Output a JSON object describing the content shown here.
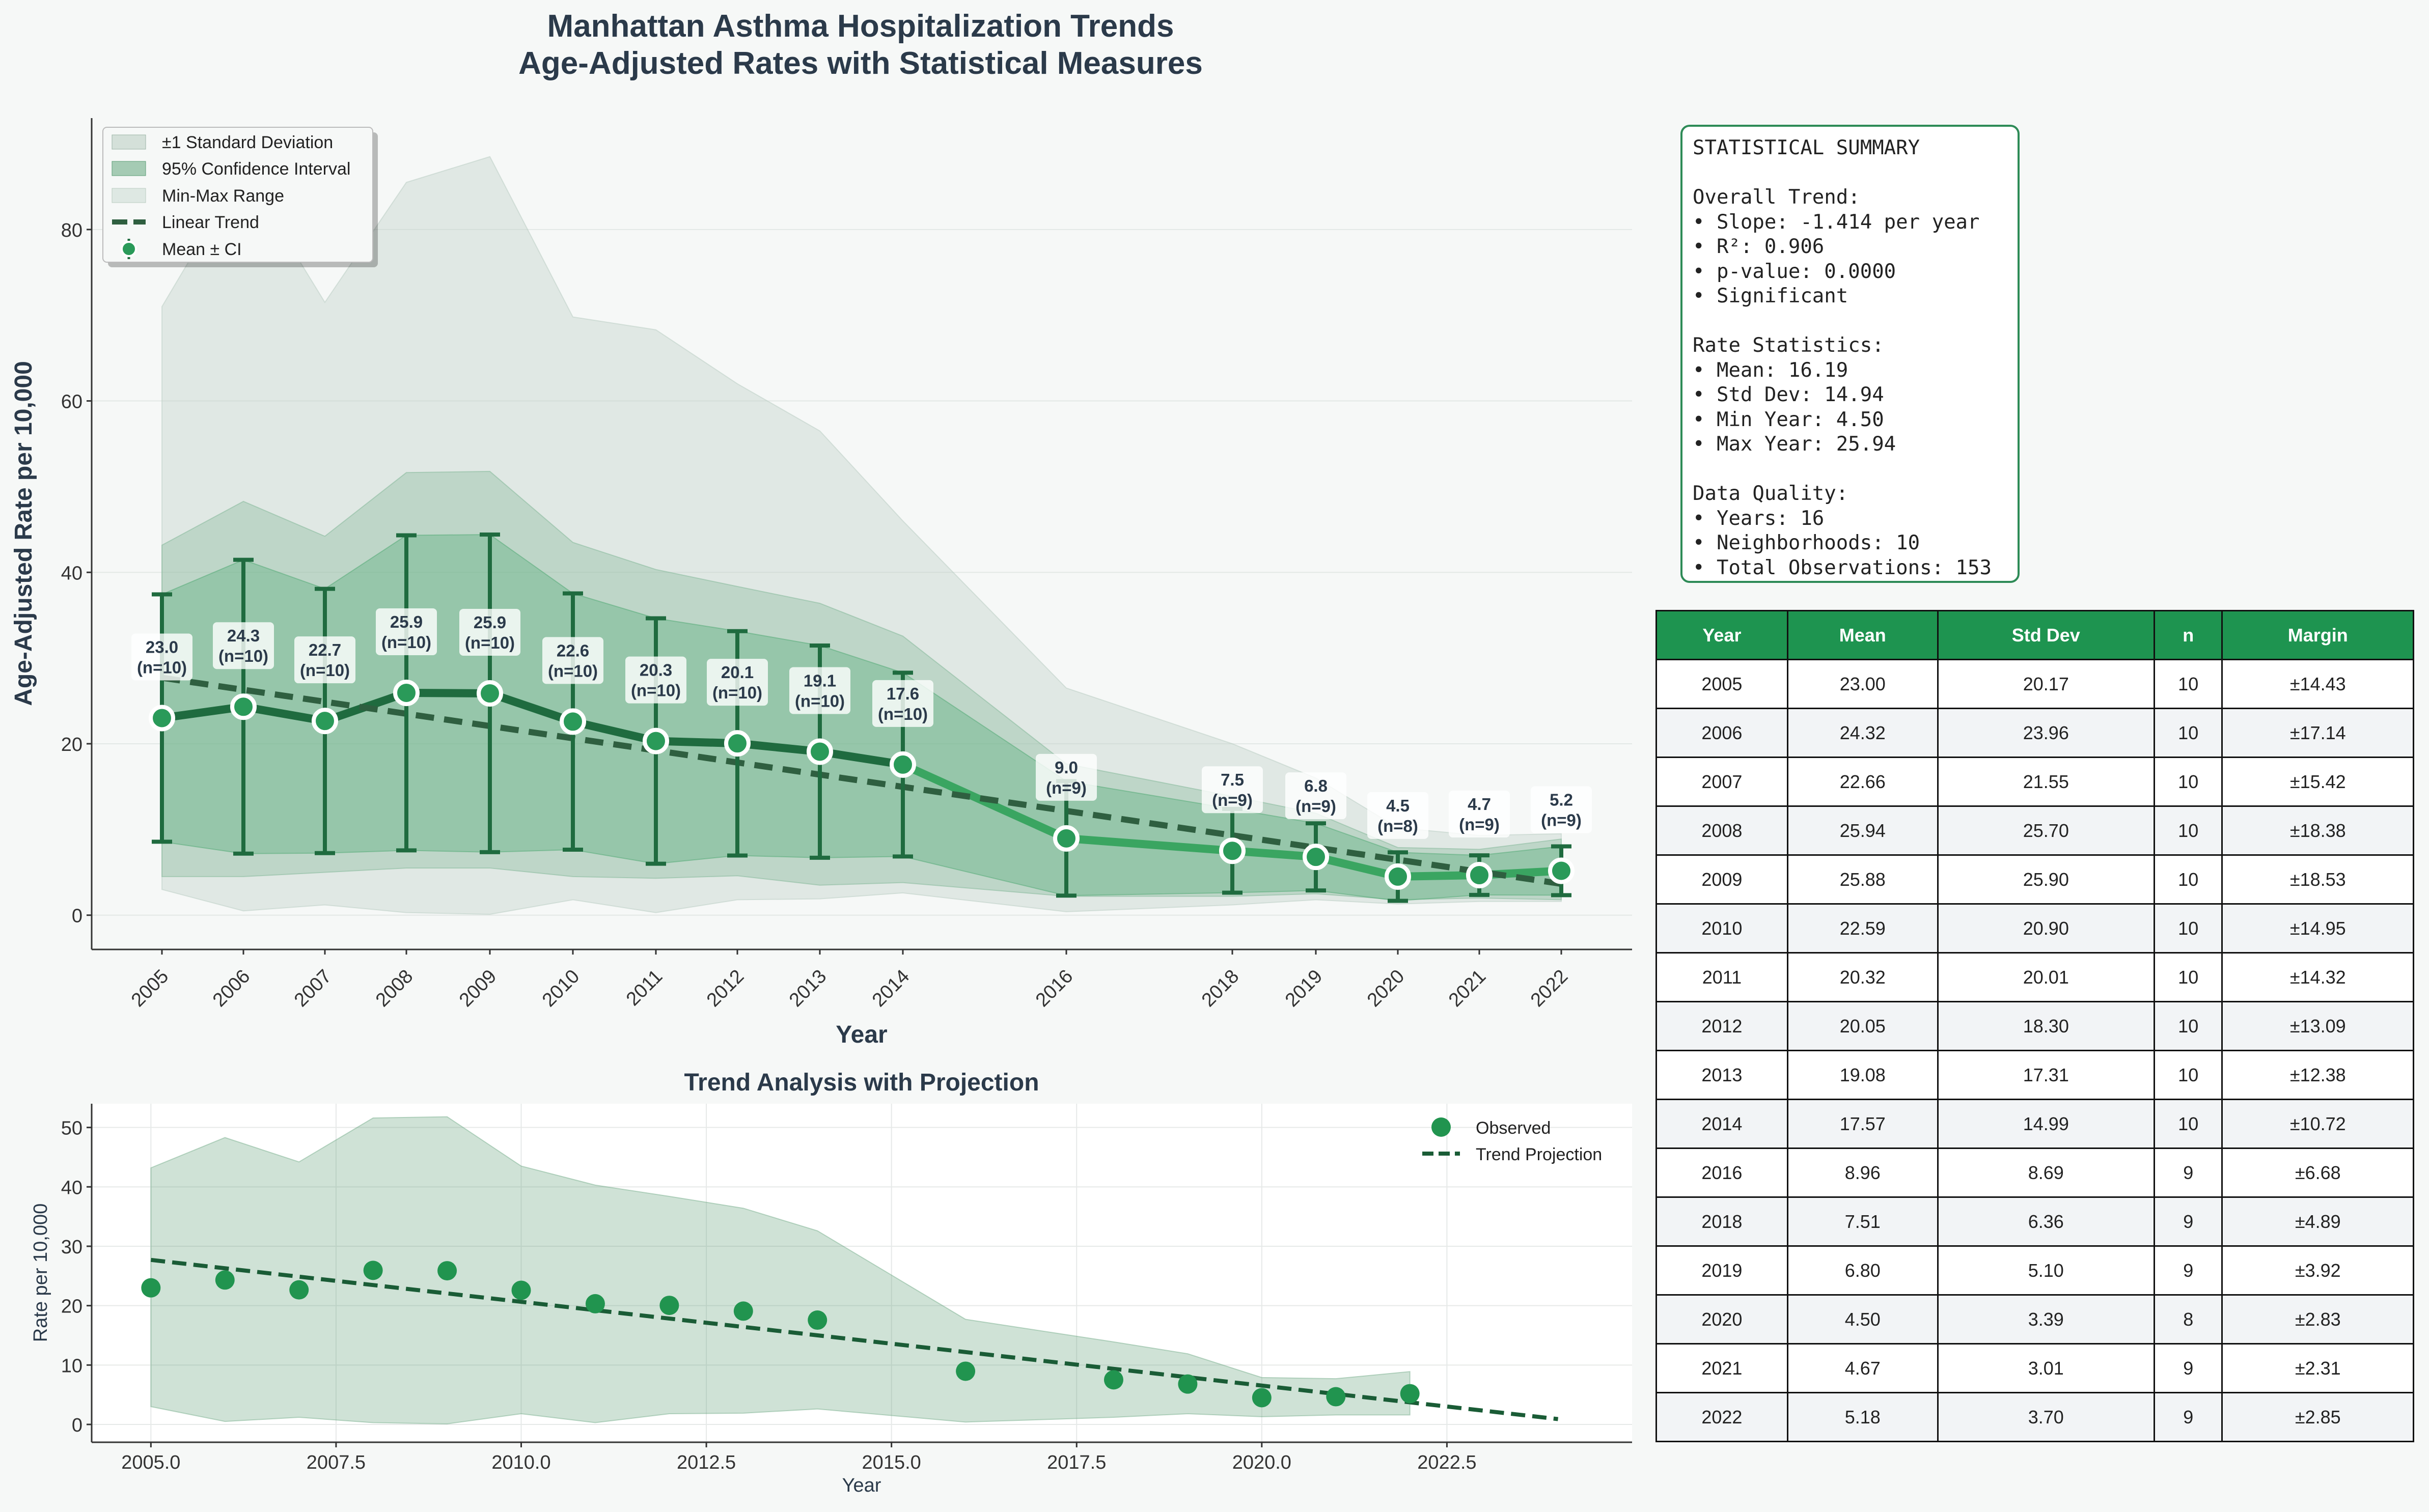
{
  "title_line1": "Manhattan Asthma Hospitalization Trends",
  "title_line2": "Age-Adjusted Rates with Statistical Measures",
  "colors": {
    "accent": "#1e9450",
    "dark_green": "#1f6b3f",
    "line_green": "#3aa561",
    "text": "#2b3a4a"
  },
  "chart_data": [
    {
      "type": "line",
      "title": "",
      "xlabel": "Year",
      "ylabel": "Age-Adjusted Rate per 10,000",
      "ylim": [
        -4,
        93
      ],
      "yticks": [
        0,
        20,
        40,
        60,
        80
      ],
      "x": [
        2005,
        2006,
        2007,
        2008,
        2009,
        2010,
        2011,
        2012,
        2013,
        2014,
        2016,
        2018,
        2019,
        2020,
        2021,
        2022
      ],
      "x_labels": [
        "2005",
        "2006",
        "2007",
        "2008",
        "2009",
        "2010",
        "2011",
        "2012",
        "2013",
        "2014",
        "2016",
        "2018",
        "2019",
        "2020",
        "2021",
        "2022"
      ],
      "mean": [
        23.0,
        24.32,
        22.66,
        25.94,
        25.88,
        22.59,
        20.32,
        20.05,
        19.08,
        17.57,
        8.96,
        7.51,
        6.8,
        4.5,
        4.67,
        5.18
      ],
      "ci_margin": [
        14.43,
        17.14,
        15.42,
        18.38,
        18.53,
        14.95,
        14.32,
        13.09,
        12.38,
        10.72,
        6.68,
        4.89,
        3.92,
        2.83,
        2.31,
        2.85
      ],
      "std": [
        20.17,
        23.96,
        21.55,
        25.7,
        25.9,
        20.9,
        20.01,
        18.3,
        17.31,
        14.99,
        8.69,
        6.36,
        5.1,
        3.39,
        3.01,
        3.7
      ],
      "min_max_lower": [
        3.0,
        0.5,
        1.2,
        0.3,
        0.1,
        1.8,
        0.3,
        1.8,
        1.9,
        2.6,
        0.4,
        1.2,
        1.8,
        1.3,
        1.6,
        1.6
      ],
      "min_max_upper": [
        71,
        87,
        71.5,
        85.5,
        88.5,
        69.8,
        68.3,
        62,
        56.5,
        46,
        26.5,
        20,
        16,
        10.2,
        9.3,
        9.5
      ],
      "point_labels": [
        "23.0\n(n=10)",
        "24.3\n(n=10)",
        "22.7\n(n=10)",
        "25.9\n(n=10)",
        "25.9\n(n=10)",
        "22.6\n(n=10)",
        "20.3\n(n=10)",
        "20.1\n(n=10)",
        "19.1\n(n=10)",
        "17.6\n(n=10)",
        "9.0\n(n=9)",
        "7.5\n(n=9)",
        "6.8\n(n=9)",
        "4.5\n(n=8)",
        "4.7\n(n=9)",
        "5.2\n(n=9)"
      ],
      "trend": {
        "slope": -1.414,
        "start_year": 2005,
        "start_value": 27.7
      },
      "legend": {
        "position": "upper-left",
        "entries": [
          "±1 Standard Deviation",
          "95% Confidence Interval",
          "Min-Max Range",
          "Linear Trend",
          "Mean ± CI"
        ]
      },
      "grid": true
    },
    {
      "type": "scatter",
      "title": "Trend Analysis with Projection",
      "xlabel": "Year",
      "ylabel": "Rate per 10,000",
      "xlim": [
        2004.2,
        2025
      ],
      "ylim": [
        -3,
        54
      ],
      "xticks": [
        "2005.0",
        "2007.5",
        "2010.0",
        "2012.5",
        "2015.0",
        "2017.5",
        "2020.0",
        "2022.5"
      ],
      "yticks": [
        0,
        10,
        20,
        30,
        40,
        50
      ],
      "x": [
        2005,
        2006,
        2007,
        2008,
        2009,
        2010,
        2011,
        2012,
        2013,
        2014,
        2016,
        2018,
        2019,
        2020,
        2021,
        2022
      ],
      "observed": [
        23.0,
        24.32,
        22.66,
        25.94,
        25.88,
        22.59,
        20.32,
        20.05,
        19.08,
        17.57,
        8.96,
        7.51,
        6.8,
        4.5,
        4.67,
        5.18
      ],
      "projection": {
        "x": [
          2005,
          2024
        ],
        "y": [
          27.7,
          0.9
        ]
      },
      "band_lower": [
        3.0,
        0.5,
        1.2,
        0.3,
        0.1,
        1.8,
        0.3,
        1.8,
        1.9,
        2.6,
        0.4,
        1.2,
        1.8,
        1.3,
        1.6,
        1.6
      ],
      "band_upper": [
        43.2,
        48.3,
        44.2,
        51.6,
        51.8,
        43.5,
        40.3,
        38.4,
        36.4,
        32.6,
        17.7,
        13.9,
        11.9,
        7.9,
        7.7,
        8.9
      ],
      "legend": {
        "position": "upper-right",
        "entries": [
          "Observed",
          "Trend Projection"
        ]
      },
      "grid": true
    }
  ],
  "summary": {
    "lines": [
      "STATISTICAL SUMMARY",
      "",
      "Overall Trend:",
      "• Slope: -1.414 per year",
      "• R²: 0.906",
      "• p-value: 0.0000",
      "• Significant",
      "",
      "Rate Statistics:",
      "• Mean: 16.19",
      "• Std Dev: 14.94",
      "• Min Year: 4.50",
      "• Max Year: 25.94",
      "",
      "Data Quality:",
      "• Years: 16",
      "• Neighborhoods: 10",
      "• Total Observations: 153"
    ]
  },
  "table": {
    "headers": [
      "Year",
      "Mean",
      "Std Dev",
      "n",
      "Margin"
    ],
    "rows": [
      [
        "2005",
        "23.00",
        "20.17",
        "10",
        "±14.43"
      ],
      [
        "2006",
        "24.32",
        "23.96",
        "10",
        "±17.14"
      ],
      [
        "2007",
        "22.66",
        "21.55",
        "10",
        "±15.42"
      ],
      [
        "2008",
        "25.94",
        "25.70",
        "10",
        "±18.38"
      ],
      [
        "2009",
        "25.88",
        "25.90",
        "10",
        "±18.53"
      ],
      [
        "2010",
        "22.59",
        "20.90",
        "10",
        "±14.95"
      ],
      [
        "2011",
        "20.32",
        "20.01",
        "10",
        "±14.32"
      ],
      [
        "2012",
        "20.05",
        "18.30",
        "10",
        "±13.09"
      ],
      [
        "2013",
        "19.08",
        "17.31",
        "10",
        "±12.38"
      ],
      [
        "2014",
        "17.57",
        "14.99",
        "10",
        "±10.72"
      ],
      [
        "2016",
        "8.96",
        "8.69",
        "9",
        "±6.68"
      ],
      [
        "2018",
        "7.51",
        "6.36",
        "9",
        "±4.89"
      ],
      [
        "2019",
        "6.80",
        "5.10",
        "9",
        "±3.92"
      ],
      [
        "2020",
        "4.50",
        "3.39",
        "8",
        "±2.83"
      ],
      [
        "2021",
        "4.67",
        "3.01",
        "9",
        "±2.31"
      ],
      [
        "2022",
        "5.18",
        "3.70",
        "9",
        "±2.85"
      ]
    ]
  }
}
